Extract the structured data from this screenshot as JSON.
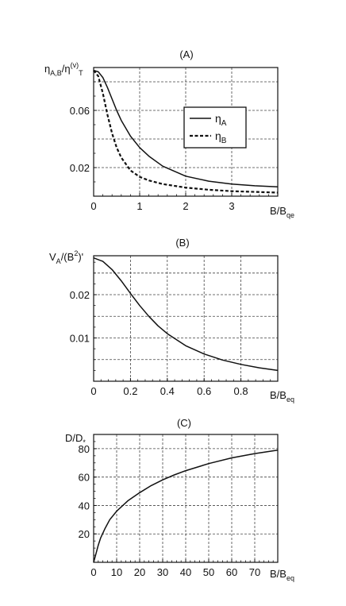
{
  "chart_data": [
    {
      "type": "line",
      "title": "(A)",
      "ylabel": "η_{A,B}/η^{(v)}_T",
      "xlabel": "B/B_qe",
      "xlim": [
        0,
        4.0
      ],
      "ylim": [
        0,
        0.09
      ],
      "xticks": [
        0,
        1,
        2,
        3
      ],
      "yticks": [
        0.02,
        0.06
      ],
      "ytick_labels": [
        "0.02",
        "0.06"
      ],
      "grid": true,
      "legend": {
        "placement": "center-right",
        "entries": [
          "η_A",
          "η_B"
        ]
      },
      "series": [
        {
          "name": "η_A",
          "style": "solid",
          "x": [
            0,
            0.1,
            0.2,
            0.3,
            0.4,
            0.5,
            0.6,
            0.8,
            1.0,
            1.2,
            1.5,
            2.0,
            2.5,
            3.0,
            3.5,
            4.0
          ],
          "y": [
            0.088,
            0.087,
            0.083,
            0.076,
            0.068,
            0.06,
            0.053,
            0.042,
            0.034,
            0.028,
            0.021,
            0.014,
            0.0105,
            0.0085,
            0.0073,
            0.0065
          ]
        },
        {
          "name": "η_B",
          "style": "dashed",
          "x": [
            0,
            0.1,
            0.2,
            0.3,
            0.4,
            0.5,
            0.6,
            0.8,
            1.0,
            1.2,
            1.5,
            2.0,
            2.5,
            3.0,
            3.5,
            4.0
          ],
          "y": [
            0.088,
            0.084,
            0.072,
            0.057,
            0.044,
            0.034,
            0.027,
            0.018,
            0.0135,
            0.011,
            0.0085,
            0.006,
            0.0045,
            0.0035,
            0.003,
            0.0025
          ]
        }
      ]
    },
    {
      "type": "line",
      "title": "(B)",
      "ylabel": "V_A/(B²)'",
      "xlabel": "B/B_eq",
      "xlim": [
        0,
        1.0
      ],
      "ylim": [
        0,
        0.029
      ],
      "xticks": [
        0,
        0.2,
        0.4,
        0.6,
        0.8
      ],
      "xtick_labels": [
        "0",
        "0.2",
        "0.4",
        "0.6",
        "0.8"
      ],
      "yticks": [
        0.01,
        0.02
      ],
      "ytick_labels": [
        "0.01",
        "0.02"
      ],
      "grid": true,
      "series": [
        {
          "x": [
            0,
            0.05,
            0.1,
            0.15,
            0.2,
            0.25,
            0.3,
            0.35,
            0.4,
            0.5,
            0.6,
            0.7,
            0.8,
            0.9,
            1.0
          ],
          "y": [
            0.0285,
            0.0277,
            0.0258,
            0.0232,
            0.0203,
            0.0175,
            0.015,
            0.0128,
            0.011,
            0.0082,
            0.0063,
            0.0049,
            0.0039,
            0.0031,
            0.0025
          ]
        }
      ]
    },
    {
      "type": "line",
      "title": "(C)",
      "ylabel": "D/D_*",
      "xlabel": "B/B_eq",
      "xlim": [
        0,
        80
      ],
      "ylim": [
        0,
        90
      ],
      "xticks": [
        0,
        10,
        20,
        30,
        40,
        50,
        60,
        70
      ],
      "yticks": [
        20,
        40,
        60,
        80
      ],
      "grid": true,
      "series": [
        {
          "x": [
            0,
            1,
            2,
            3,
            5,
            7,
            10,
            15,
            20,
            25,
            30,
            35,
            40,
            50,
            60,
            70,
            80
          ],
          "y": [
            0,
            6,
            12,
            17,
            24,
            30,
            36,
            43.5,
            49,
            54,
            58,
            61.5,
            64.5,
            69.5,
            73.5,
            76.5,
            79
          ]
        }
      ]
    }
  ]
}
